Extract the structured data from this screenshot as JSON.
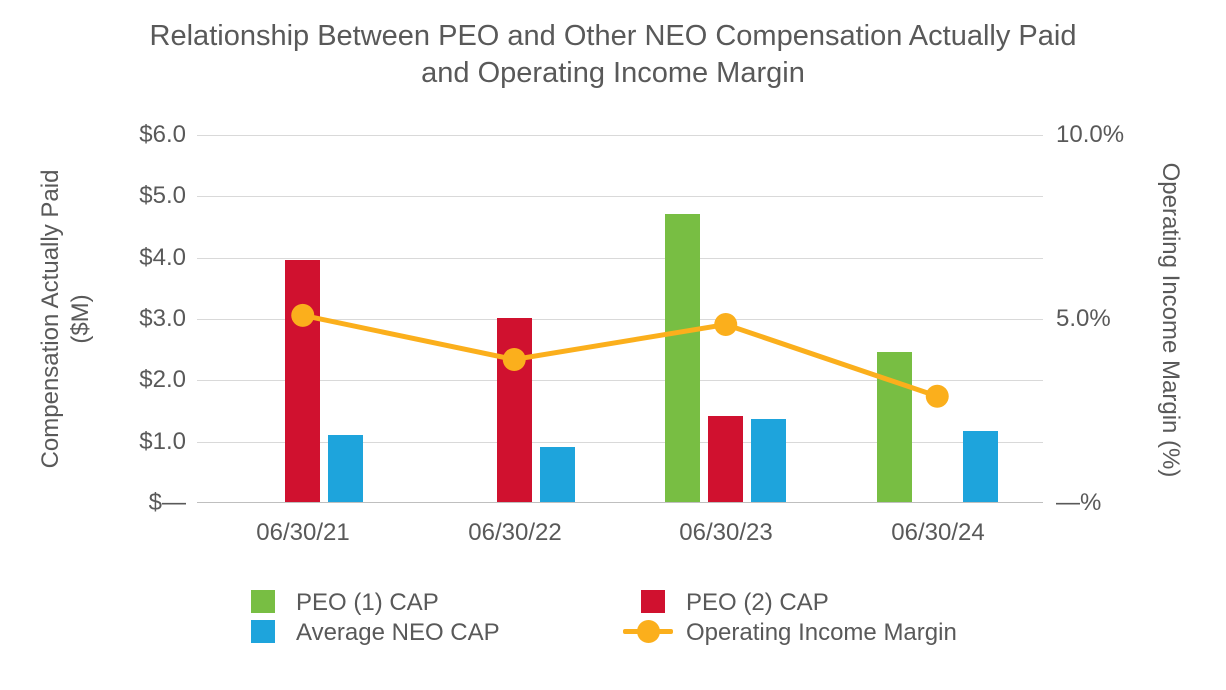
{
  "title": {
    "line1": "Relationship Between PEO and Other NEO Compensation Actually Paid",
    "line2": "and Operating Income Margin"
  },
  "colors": {
    "peo1_green": "#78BE43",
    "peo2_red": "#D0112F",
    "neo_blue": "#1EA4DC",
    "oim_yellow": "#FBAF1C",
    "text_gray": "#595959",
    "gridline_gray": "#D9D9D9"
  },
  "left_axis": {
    "title_line1": "Compensation Actually Paid",
    "title_line2": "($M)",
    "ticks": [
      "$6.0",
      "$5.0",
      "$4.0",
      "$3.0",
      "$2.0",
      "$1.0",
      "$—"
    ]
  },
  "right_axis": {
    "title": "Operating Income Margin (%)",
    "ticks": [
      "10.0%",
      "5.0%",
      "—%"
    ]
  },
  "x_axis": {
    "labels": [
      "06/30/21",
      "06/30/22",
      "06/30/23",
      "06/30/24"
    ]
  },
  "legend": {
    "items": [
      {
        "label": "PEO (1) CAP",
        "color": "#78BE43",
        "marker": "square"
      },
      {
        "label": "PEO (2) CAP",
        "color": "#D0112F",
        "marker": "square"
      },
      {
        "label": "Average NEO CAP",
        "color": "#1EA4DC",
        "marker": "square"
      },
      {
        "label": "Operating Income Margin",
        "color": "#FBAF1C",
        "marker": "line-circle"
      }
    ]
  },
  "chart_data": {
    "type": "bar+line",
    "title": "Relationship Between PEO and Other NEO Compensation Actually Paid and Operating Income Margin",
    "categories": [
      "06/30/21",
      "06/30/22",
      "06/30/23",
      "06/30/24"
    ],
    "series": [
      {
        "name": "PEO (1) CAP",
        "type": "bar",
        "axis": "left",
        "color": "#78BE43",
        "values": [
          null,
          null,
          4.7,
          2.45
        ]
      },
      {
        "name": "PEO (2) CAP",
        "type": "bar",
        "axis": "left",
        "color": "#D0112F",
        "values": [
          3.95,
          3.0,
          1.4,
          null
        ]
      },
      {
        "name": "Average NEO CAP",
        "type": "bar",
        "axis": "left",
        "color": "#1EA4DC",
        "values": [
          1.1,
          0.9,
          1.35,
          1.15
        ]
      },
      {
        "name": "Operating Income Margin",
        "type": "line",
        "axis": "right",
        "color": "#FBAF1C",
        "values": [
          5.1,
          3.9,
          4.85,
          2.9
        ]
      }
    ],
    "left_ylabel": "Compensation Actually Paid ($M)",
    "right_ylabel": "Operating Income Margin (%)",
    "xlabel": "",
    "left_ylim": [
      0,
      6
    ],
    "right_ylim": [
      0,
      10
    ],
    "grid": true,
    "legend_position": "bottom"
  }
}
